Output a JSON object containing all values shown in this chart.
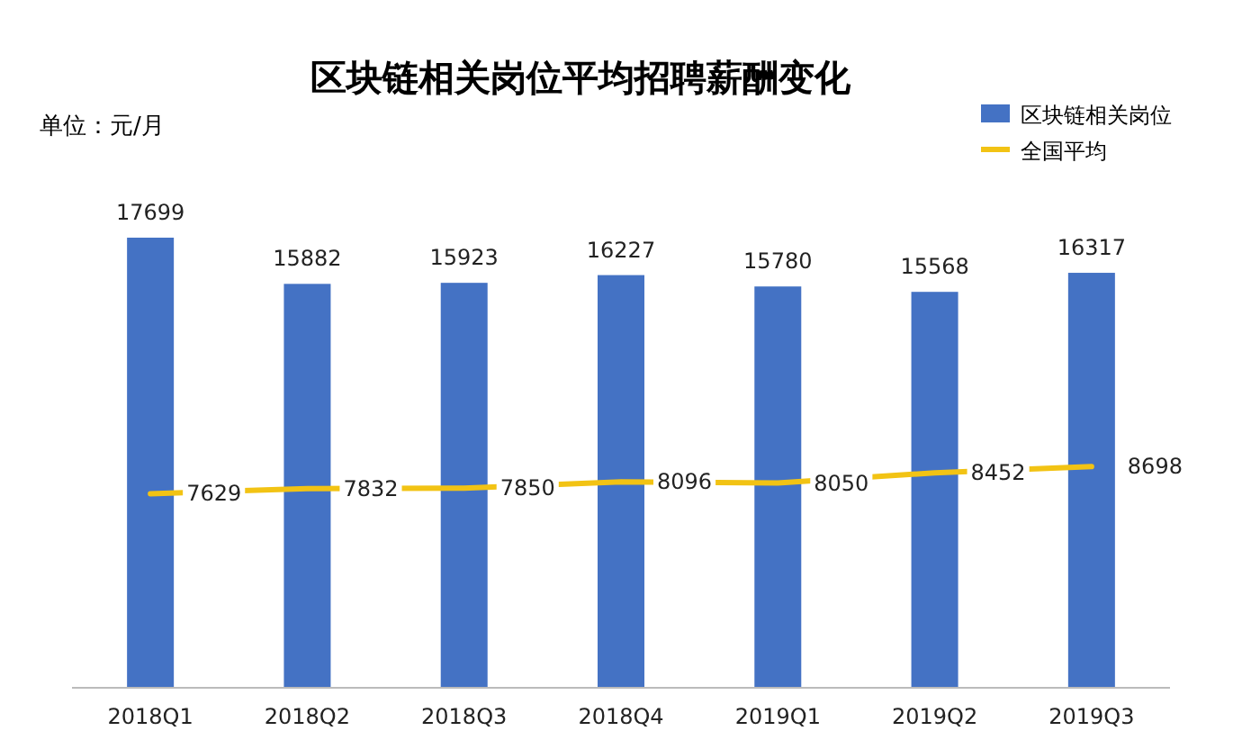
{
  "chart_data": {
    "type": "bar",
    "title": "区块链相关岗位平均招聘薪酬变化",
    "annotations": [
      "单位：元/月"
    ],
    "categories": [
      "2018Q1",
      "2018Q2",
      "2018Q3",
      "2018Q4",
      "2019Q1",
      "2019Q2",
      "2019Q3"
    ],
    "series": [
      {
        "name": "区块链相关岗位",
        "color": "#4472c4",
        "values": [
          17699,
          15882,
          15923,
          16227,
          15780,
          15568,
          16317
        ]
      },
      {
        "name": "全国平均",
        "color": "#f2c314",
        "type": "line",
        "values": [
          7629,
          7832,
          7850,
          8096,
          8050,
          8452,
          8698
        ]
      }
    ],
    "data_labels": true,
    "legend": "top right"
  }
}
